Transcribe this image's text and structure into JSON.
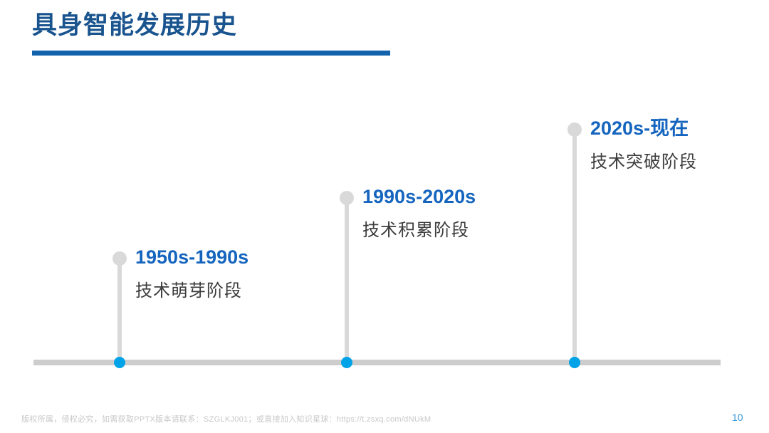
{
  "slide": {
    "title": "具身智能发展历史",
    "footer": "版权所属，侵权必究，如需获取PPTX版本请联系：SZGLKJ001；或直接加入知识星球：https://t.zsxq.com/dNUkM",
    "page_number": "10"
  },
  "timeline": {
    "items": [
      {
        "period": "1950s-1990s",
        "stage": "技术萌芽阶段"
      },
      {
        "period": "1990s-2020s",
        "stage": "技术积累阶段"
      },
      {
        "period": "2020s-现在",
        "stage": "技术突破阶段"
      }
    ]
  },
  "colors": {
    "title_blue": "#1a548e",
    "underline_blue": "#1363ac",
    "period_blue": "#1565be",
    "stage_text": "#3d3d3d",
    "line_gray": "#d9d9d9",
    "baseline_gray": "#cdcdcd",
    "node_dot_cyan": "#00a3e8",
    "footer_gray": "#c8c8c8",
    "page_number_blue": "#3399db"
  }
}
